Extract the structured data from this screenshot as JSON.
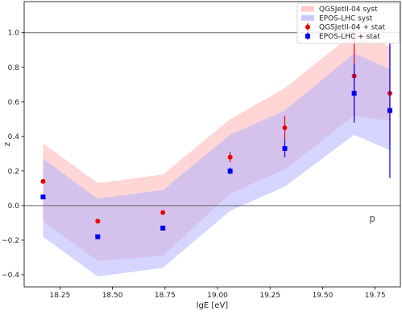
{
  "chart_data": {
    "type": "scatter",
    "xlabel": "lgE [eV]",
    "ylabel": "z",
    "xlim": [
      18.08,
      19.87
    ],
    "ylim": [
      -0.47,
      1.18
    ],
    "xticks": [
      "18.25",
      "18.50",
      "18.75",
      "19.00",
      "19.25",
      "19.50",
      "19.75"
    ],
    "yticks": [
      "−0.4",
      "−0.2",
      "0.0",
      "0.2",
      "0.4",
      "0.6",
      "0.8",
      "1.0"
    ],
    "grid": false,
    "reference_lines_y": [
      0.0,
      1.0
    ],
    "legend_position": "top-right",
    "annotation": "p",
    "bands": [
      {
        "name": "QGSJetII-04 syst",
        "color": "#ffb3b3",
        "x": [
          18.17,
          18.43,
          18.74,
          19.06,
          19.32,
          19.65,
          19.82
        ],
        "upper": [
          0.36,
          0.13,
          0.18,
          0.5,
          0.68,
          1.0,
          0.92
        ],
        "lower": [
          -0.09,
          -0.32,
          -0.29,
          0.07,
          0.21,
          0.52,
          0.49
        ]
      },
      {
        "name": "EPOS-LHC syst",
        "color": "#b3b3ff",
        "x": [
          18.17,
          18.43,
          18.74,
          19.06,
          19.32,
          19.65,
          19.82
        ],
        "upper": [
          0.27,
          0.04,
          0.09,
          0.41,
          0.55,
          0.88,
          0.79
        ],
        "lower": [
          -0.18,
          -0.41,
          -0.36,
          -0.03,
          0.11,
          0.41,
          0.32
        ]
      }
    ],
    "series": [
      {
        "name": "QGSJetII-04 + stat",
        "color": "#ee0000",
        "marker": "circle",
        "x": [
          18.17,
          18.43,
          18.74,
          19.06,
          19.32,
          19.65,
          19.82
        ],
        "y": [
          0.14,
          -0.09,
          -0.04,
          0.28,
          0.45,
          0.75,
          0.65
        ],
        "err": [
          0.0,
          0.0,
          0.0,
          0.03,
          0.07,
          0.25,
          0.3
        ]
      },
      {
        "name": "EPOS-LHC + stat",
        "color": "#0000ee",
        "marker": "square",
        "x": [
          18.17,
          18.43,
          18.74,
          19.06,
          19.32,
          19.65,
          19.82
        ],
        "y": [
          0.05,
          -0.18,
          -0.13,
          0.2,
          0.33,
          0.65,
          0.55
        ],
        "err": [
          0.0,
          0.0,
          0.0,
          0.02,
          0.05,
          0.17,
          0.39
        ]
      }
    ]
  }
}
